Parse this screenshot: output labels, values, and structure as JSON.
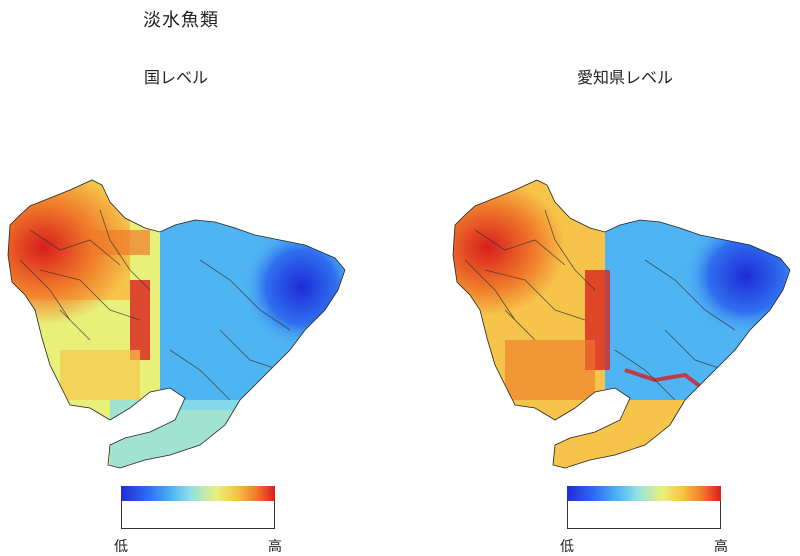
{
  "figure": {
    "title": "淡水魚類"
  },
  "panels": [
    {
      "title": "国レベル",
      "legend": {
        "low": "低",
        "high": "高"
      },
      "scheme": "national"
    },
    {
      "title": "愛知県レベル",
      "legend": {
        "low": "低",
        "high": "高"
      },
      "scheme": "prefecture"
    }
  ],
  "colors": {
    "low": "#1f2bd6",
    "mid_low": "#4fb4f2",
    "mid": "#e8f07a",
    "mid_high": "#f07a2a",
    "high": "#d81e1e",
    "boundary": "#222222",
    "river": "#333333"
  }
}
